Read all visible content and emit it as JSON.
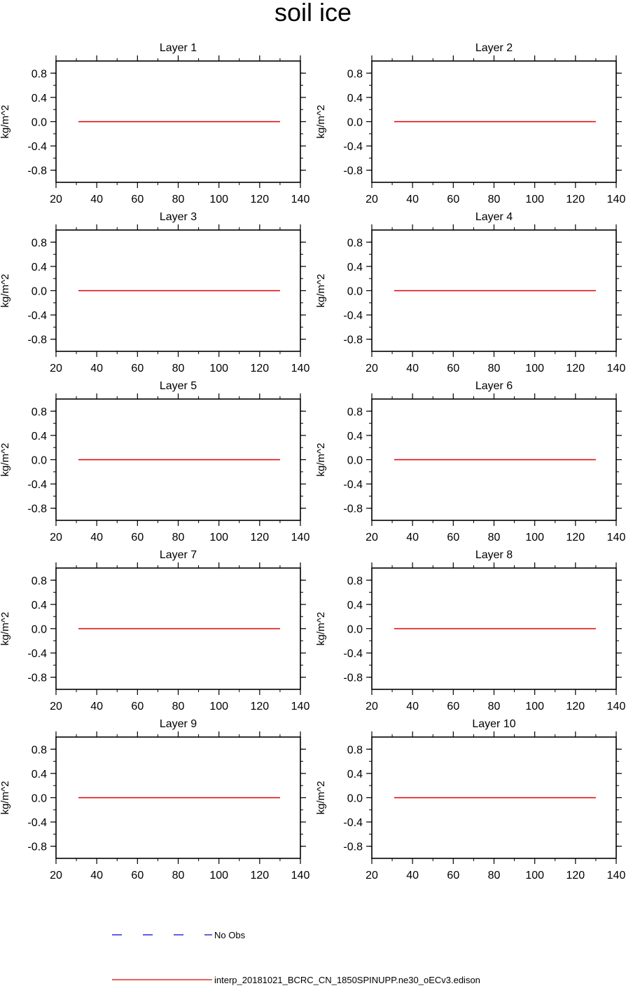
{
  "figure": {
    "title": "soil ice"
  },
  "chart_data": {
    "type": "line",
    "x_ticks": [
      20,
      40,
      60,
      80,
      100,
      120,
      140
    ],
    "y_ticks": [
      0.8,
      0.4,
      0.0,
      -0.4,
      -0.8
    ],
    "y_tick_labels": [
      "0.8",
      "0.4",
      "0.0",
      "-0.4",
      "-0.8"
    ],
    "xlim": [
      20,
      140
    ],
    "ylim": [
      -1,
      1
    ],
    "ylabel": "kg/m^2",
    "grid": false,
    "legend_position": "bottom",
    "panels": [
      {
        "title": "Layer 1"
      },
      {
        "title": "Layer 2"
      },
      {
        "title": "Layer 3"
      },
      {
        "title": "Layer 4"
      },
      {
        "title": "Layer 5"
      },
      {
        "title": "Layer 6"
      },
      {
        "title": "Layer 7"
      },
      {
        "title": "Layer 8"
      },
      {
        "title": "Layer 9"
      },
      {
        "title": "Layer 10"
      }
    ],
    "series": [
      {
        "name": "interp_20181021_BCRC_CN_1850SPINUPP.ne30_oECv3.edison",
        "color": "#e00000",
        "style": "solid",
        "x": [
          31,
          130
        ],
        "values": [
          0.0,
          0.0
        ]
      },
      {
        "name": "No Obs",
        "color": "#0000cc",
        "style": "dashed",
        "x": [],
        "values": []
      }
    ]
  }
}
